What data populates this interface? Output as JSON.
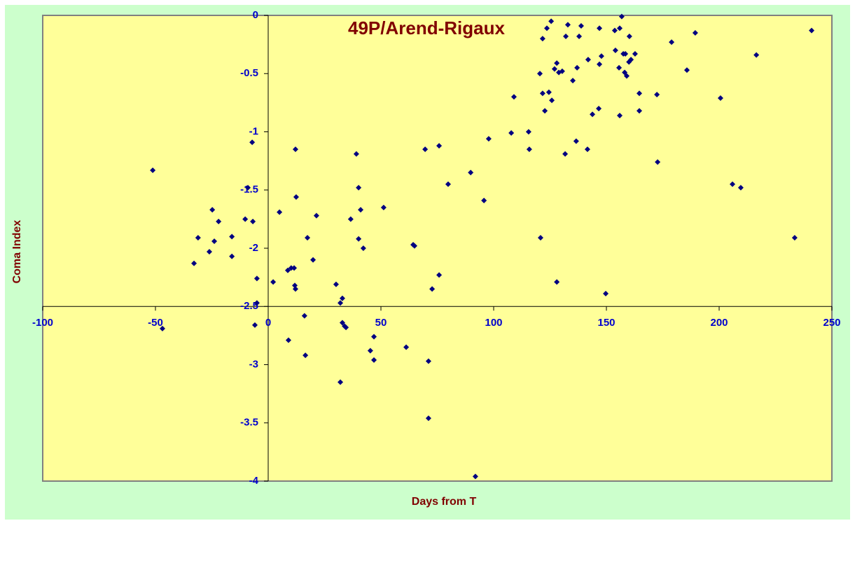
{
  "chart_data": {
    "type": "scatter",
    "title": "49P/Arend-Rigaux",
    "x_label": "Days from T",
    "y_label": "Coma Index",
    "x": [
      -51.2,
      -46.9,
      -32.9,
      -31.1,
      -26.1,
      -24.8,
      -23.9,
      -22.0,
      -16.1,
      -16.1,
      -10.2,
      -9.0,
      -7.1,
      -6.8,
      -5.9,
      -5.0,
      -5.0,
      2.2,
      5.0,
      8.7,
      9.0,
      10.2,
      11.5,
      11.8,
      12.1,
      12.1,
      12.4,
      16.1,
      16.5,
      17.4,
      19.9,
      21.4,
      30.1,
      32.0,
      32.0,
      32.9,
      32.9,
      33.9,
      34.5,
      36.6,
      39.1,
      40.1,
      40.1,
      41.0,
      42.2,
      45.3,
      46.9,
      46.9,
      51.2,
      61.2,
      64.3,
      64.9,
      69.6,
      71.1,
      71.1,
      72.7,
      75.8,
      75.8,
      79.8,
      89.8,
      91.9,
      95.7,
      97.8,
      107.8,
      109.0,
      115.5,
      115.8,
      120.5,
      120.8,
      121.7,
      121.7,
      122.7,
      123.6,
      124.5,
      125.5,
      125.8,
      127.0,
      128.0,
      128.0,
      128.9,
      130.4,
      131.7,
      132.0,
      132.9,
      135.1,
      136.6,
      137.0,
      137.9,
      138.8,
      141.6,
      141.9,
      143.8,
      146.6,
      146.9,
      146.9,
      147.8,
      149.7,
      153.7,
      154.0,
      155.6,
      155.9,
      155.9,
      156.8,
      157.5,
      158.1,
      158.4,
      159.0,
      160.0,
      160.2,
      160.9,
      162.7,
      164.6,
      164.6,
      172.4,
      172.7,
      178.9,
      185.7,
      189.4,
      200.6,
      205.9,
      209.6,
      216.5,
      233.5,
      241.0
    ],
    "series": [
      {
        "color": "#000080",
        "values": [
          -1.33,
          -2.69,
          -2.13,
          -1.91,
          -2.03,
          -1.67,
          -1.94,
          -1.77,
          -1.9,
          -2.07,
          -1.75,
          -1.48,
          -1.09,
          -1.77,
          -2.66,
          -2.26,
          -2.47,
          -2.29,
          -1.69,
          -2.19,
          -2.79,
          -2.17,
          -2.17,
          -2.32,
          -2.35,
          -1.15,
          -1.56,
          -2.58,
          -2.92,
          -1.91,
          -2.1,
          -1.72,
          -2.31,
          -2.47,
          -3.15,
          -2.43,
          -2.64,
          -2.67,
          -2.68,
          -1.75,
          -1.19,
          -1.48,
          -1.92,
          -1.67,
          -2.0,
          -2.88,
          -2.76,
          -2.96,
          -1.65,
          -2.85,
          -1.97,
          -1.98,
          -1.15,
          -2.97,
          -3.46,
          -2.35,
          -1.12,
          -2.23,
          -1.45,
          -1.35,
          -3.96,
          -1.59,
          -1.06,
          -1.01,
          -0.7,
          -1.0,
          -1.15,
          -0.5,
          -1.91,
          -0.2,
          -0.67,
          -0.82,
          -0.11,
          -0.66,
          -0.05,
          -0.73,
          -0.46,
          -0.41,
          -2.29,
          -0.49,
          -0.48,
          -1.19,
          -0.18,
          -0.08,
          -0.56,
          -1.08,
          -0.45,
          -0.18,
          -0.09,
          -1.15,
          -0.38,
          -0.85,
          -0.8,
          -0.42,
          -0.11,
          -0.35,
          -2.39,
          -0.13,
          -0.3,
          -0.45,
          -0.11,
          -0.86,
          -0.01,
          -0.33,
          -0.49,
          -0.33,
          -0.52,
          -0.4,
          -0.18,
          -0.38,
          -0.33,
          -0.67,
          -0.82,
          -0.68,
          -1.26,
          -0.23,
          -0.47,
          -0.15,
          -0.71,
          -1.45,
          -1.48,
          -0.34,
          -1.91,
          -0.13
        ]
      }
    ],
    "xlim": [
      -100,
      250
    ],
    "ylim": [
      -4,
      0
    ],
    "xticks": [
      -100,
      -50,
      0,
      50,
      100,
      150,
      200,
      250
    ],
    "yticks": [
      -4,
      -3.5,
      -3,
      -2.5,
      -2,
      -1.5,
      -1,
      -0.5,
      0
    ],
    "x_axis_at": -2.5,
    "y_axis_at": 0
  }
}
